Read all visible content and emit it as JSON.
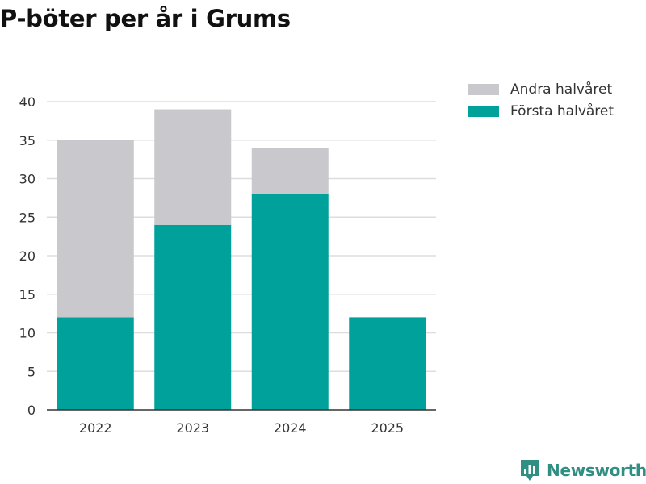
{
  "title": "P-böter per år i Grums",
  "chart_data": {
    "type": "bar",
    "stacked": true,
    "title": "P-böter per år i Grums",
    "categories": [
      "2022",
      "2023",
      "2024",
      "2025"
    ],
    "series": [
      {
        "name": "Första halvåret",
        "color": "#00a19a",
        "values": [
          12,
          24,
          28,
          12
        ]
      },
      {
        "name": "Andra halvåret",
        "color": "#c8c8cd",
        "values": [
          23,
          15,
          6,
          0
        ]
      }
    ],
    "yticks": [
      0,
      5,
      10,
      15,
      20,
      25,
      30,
      35,
      40
    ],
    "ylim": [
      0,
      40
    ],
    "xlabel": "",
    "ylabel": "",
    "grid": true,
    "legend_position": "top-right"
  },
  "legend": [
    {
      "label": "Andra halvåret",
      "color": "#c8c8cd"
    },
    {
      "label": "Första halvåret",
      "color": "#00a19a"
    }
  ],
  "brand": {
    "name": "Newsworthy",
    "color": "#2f8f82"
  }
}
